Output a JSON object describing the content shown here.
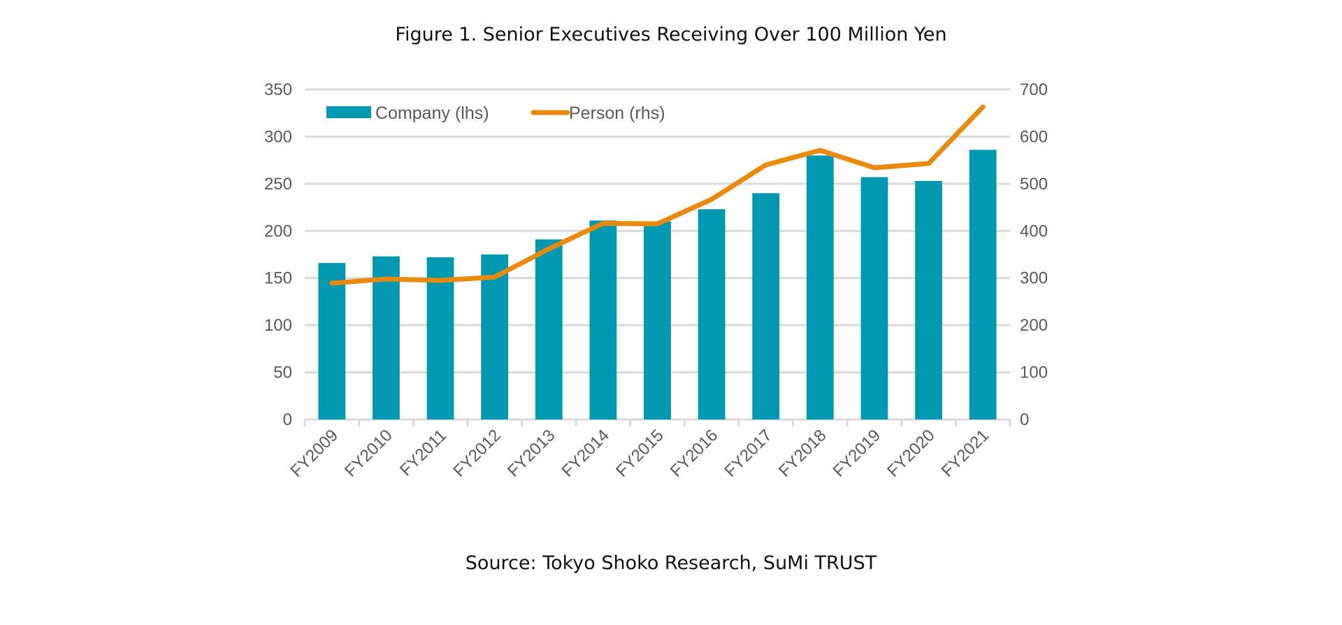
{
  "chart_data": {
    "type": "bar+line",
    "title": "Figure 1. Senior Executives Receiving Over 100 Million Yen",
    "source": "Source: Tokyo Shoko Research, SuMi TRUST",
    "categories": [
      "FY2009",
      "FY2010",
      "FY2011",
      "FY2012",
      "FY2013",
      "FY2014",
      "FY2015",
      "FY2016",
      "FY2017",
      "FY2018",
      "FY2019",
      "FY2020",
      "FY2021"
    ],
    "series": [
      {
        "name": "Company (lhs)",
        "type": "bar",
        "axis": "left",
        "color": "#0099B1",
        "values": [
          166,
          173,
          172,
          175,
          191,
          211,
          210,
          223,
          240,
          280,
          257,
          253,
          286
        ]
      },
      {
        "name": "Person (rhs)",
        "type": "line",
        "axis": "right",
        "color": "#EA8A0C",
        "values": [
          289,
          298,
          295,
          302,
          362,
          416,
          415,
          467,
          540,
          571,
          534,
          543,
          663
        ]
      }
    ],
    "y_left": {
      "range": [
        0,
        350
      ],
      "ticks": [
        0,
        50,
        100,
        150,
        200,
        250,
        300,
        350
      ]
    },
    "y_right": {
      "range": [
        0,
        700
      ],
      "ticks": [
        0,
        100,
        200,
        300,
        400,
        500,
        600,
        700
      ]
    },
    "grid": true,
    "legend_position": "top-left"
  }
}
